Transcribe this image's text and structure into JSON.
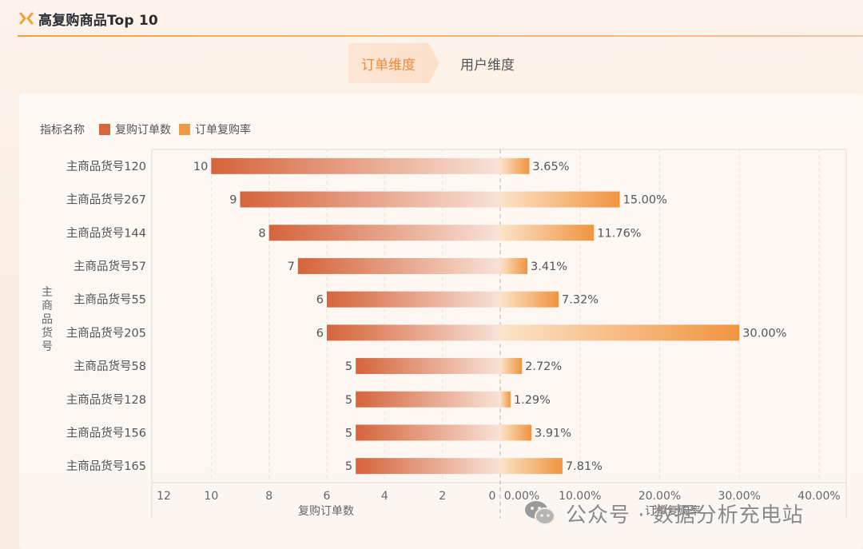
{
  "header": {
    "title": "高复购商品Top 10"
  },
  "tabs": [
    {
      "label": "订单维度",
      "active": true
    },
    {
      "label": "用户维度",
      "active": false
    }
  ],
  "legend": {
    "title": "指标名称",
    "items": [
      {
        "label": "复购订单数",
        "color": "#d5673a"
      },
      {
        "label": "订单复购率",
        "color": "#f09a48"
      }
    ]
  },
  "watermark": {
    "text": "公众号 · 数据分析充电站",
    "icon": "wechat-icon"
  },
  "chart_data": {
    "type": "bar",
    "orientation": "horizontal-butterfly",
    "ylabel": "主商品货号",
    "categories": [
      "主商品货号120",
      "主商品货号267",
      "主商品货号144",
      "主商品货号57",
      "主商品货号55",
      "主商品货号205",
      "主商品货号58",
      "主商品货号128",
      "主商品货号156",
      "主商品货号165"
    ],
    "series": [
      {
        "name": "复购订单数",
        "side": "left",
        "values": [
          10,
          9,
          8,
          7,
          6,
          6,
          5,
          5,
          5,
          5
        ],
        "labels": [
          "10",
          "9",
          "8",
          "7",
          "6",
          "6",
          "5",
          "5",
          "5",
          "5"
        ],
        "xlabel": "复购订单数",
        "xlim": [
          0,
          12
        ],
        "ticks": [
          "12",
          "10",
          "8",
          "6",
          "4",
          "2",
          "0"
        ],
        "tick_values": [
          12,
          10,
          8,
          6,
          4,
          2,
          0
        ]
      },
      {
        "name": "订单复购率",
        "side": "right",
        "values": [
          3.65,
          15.0,
          11.76,
          3.41,
          7.32,
          30.0,
          2.72,
          1.29,
          3.91,
          7.81
        ],
        "labels": [
          "3.65%",
          "15.00%",
          "11.76%",
          "3.41%",
          "7.32%",
          "30.00%",
          "2.72%",
          "1.29%",
          "3.91%",
          "7.81%"
        ],
        "xlabel": "订单复购率",
        "xlim": [
          0,
          40
        ],
        "ticks": [
          "0.00%",
          "10.00%",
          "20.00%",
          "30.00%",
          "40.00%"
        ],
        "tick_values": [
          0,
          10,
          20,
          30,
          40
        ]
      }
    ],
    "grid": true
  }
}
